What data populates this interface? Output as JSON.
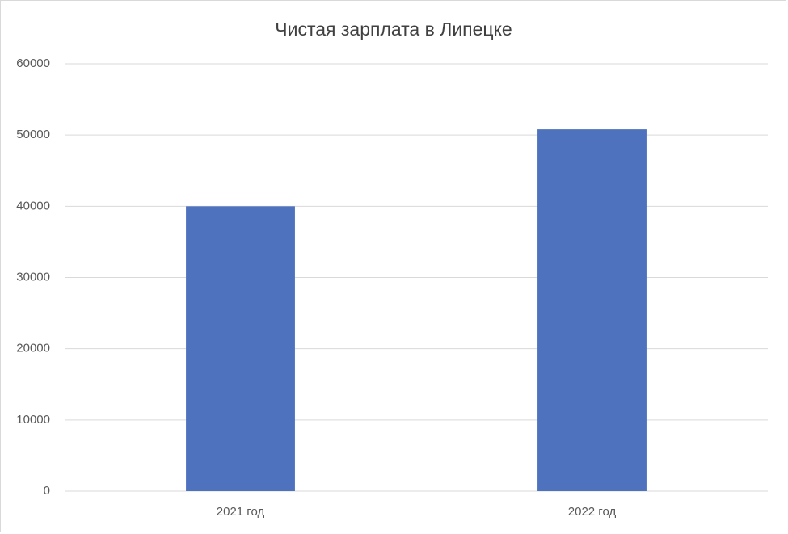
{
  "chart_data": {
    "type": "bar",
    "title": "Чистая зарплата в Липецке",
    "categories": [
      "2021 год",
      "2022 год"
    ],
    "values": [
      40000,
      50800
    ],
    "color": "#4e72bd",
    "ylim": [
      0,
      60000
    ],
    "yticks": [
      0,
      10000,
      20000,
      30000,
      40000,
      50000,
      60000
    ],
    "grid": true
  }
}
